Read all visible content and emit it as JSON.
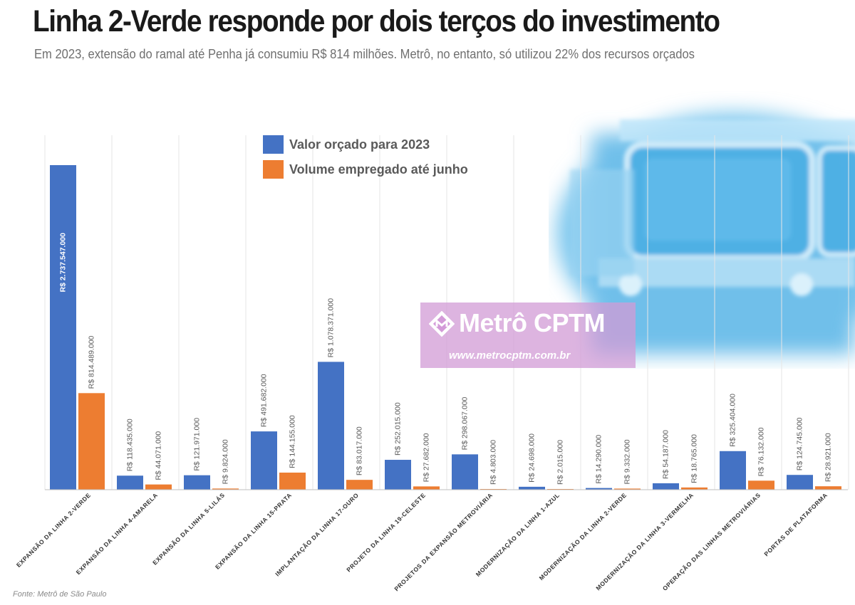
{
  "header": {
    "title": "Linha 2-Verde responde por dois terços do investimento",
    "subtitle": "Em 2023, extensão do ramal até Penha já consumiu R$ 814 milhões. Metrô, no entanto, só utilizou 22% dos recursos orçados"
  },
  "watermark": {
    "brand": "Metrô CPTM",
    "url": "www.metrocptm.com.br"
  },
  "source": "Fonte: Metrô de São Paulo",
  "colors": {
    "budget": "#4472c4",
    "spent": "#ed7d31",
    "grid": "#e6e6e6",
    "axis": "#bfbfbf",
    "label_text": "#595959",
    "inside_label": "#ffffff"
  },
  "chart_data": {
    "type": "bar",
    "title": "Linha 2-Verde responde por dois terços do investimento",
    "xlabel": "",
    "ylabel": "",
    "ylim": [
      0,
      2737547000
    ],
    "grid": "vertical-separators",
    "legend_position": "top-center",
    "categories": [
      "EXPANSÃO DA LINHA 2-VERDE",
      "EXPANSÃO DA LINHA 4-AMARELA",
      "EXPANSÃO DA LINHA 5-LILÁS",
      "EXPANSÃO DA LINHA 15-PRATA",
      "IMPLANTAÇÃO DA LINHA 17-OURO",
      "PROJETO DA LINHA 19-CELESTE",
      "PROJETOS DA EXPANSÃO METROVIÁRIA",
      "MODERNIZAÇÃO DA LINHA 1-AZUL",
      "MODERNIZAÇÃO DA LINHA 2-VERDE",
      "MODERNIZAÇÃO DA LINHA 3-VERMELHA",
      "OPERAÇÃO DAS LINHAS METROVIÁRIAS",
      "PORTAS DE PLATAFORMA"
    ],
    "series": [
      {
        "name": "Valor orçado para 2023",
        "values": [
          2737547000,
          118435000,
          121971000,
          491682000,
          1078371000,
          252015000,
          298067000,
          24698000,
          14290000,
          54187000,
          325404000,
          124745000
        ],
        "labels": [
          "R$ 2.737.547.000",
          "R$ 118.435.000",
          "R$ 121.971.000",
          "R$ 491.682.000",
          "R$ 1.078.371.000",
          "R$ 252.015.000",
          "R$ 298.067.000",
          "R$ 24.698.000",
          "R$ 14.290.000",
          "R$ 54.187.000",
          "R$ 325.404.000",
          "R$ 124.745.000"
        ]
      },
      {
        "name": "Volume empregado até junho",
        "values": [
          814489000,
          44071000,
          9824000,
          144155000,
          83017000,
          27682000,
          4803000,
          2015000,
          9332000,
          18765000,
          76132000,
          28921000
        ],
        "labels": [
          "R$ 814.489.000",
          "R$ 44.071.000",
          "R$ 9.824.000",
          "R$ 144.155.000",
          "R$ 83.017.000",
          "R$ 27.682.000",
          "R$ 4.803.000",
          "R$ 2.015.000",
          "R$ 9.332.000",
          "R$ 18.765.000",
          "R$ 76.132.000",
          "R$ 28.921.000"
        ]
      }
    ]
  }
}
